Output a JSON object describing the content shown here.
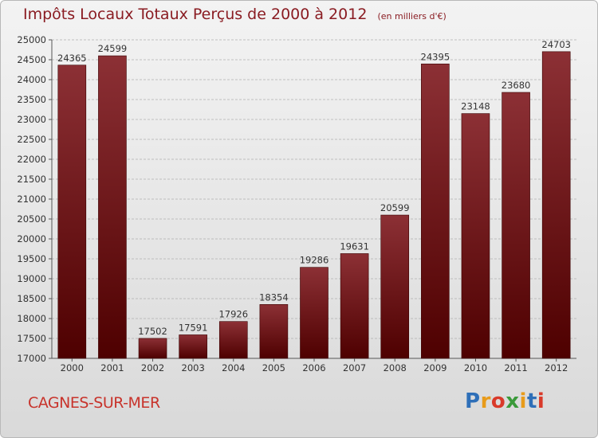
{
  "chart_data": {
    "type": "bar",
    "title": "Impôts Locaux Totaux Perçus de 2000 à 2012",
    "subtitle": "(en milliers d'€)",
    "categories": [
      "2000",
      "2001",
      "2002",
      "2003",
      "2004",
      "2005",
      "2006",
      "2007",
      "2008",
      "2009",
      "2010",
      "2011",
      "2012"
    ],
    "values": [
      24365,
      24599,
      17502,
      17591,
      17926,
      18354,
      19286,
      19631,
      20599,
      24395,
      23148,
      23680,
      24703
    ],
    "ylim": [
      17000,
      25000
    ],
    "yticks": [
      17000,
      17500,
      18000,
      18500,
      19000,
      19500,
      20000,
      20500,
      21000,
      21500,
      22000,
      22500,
      23000,
      23500,
      24000,
      24500,
      25000
    ],
    "grid": true,
    "colors": {
      "bar_top": "#8c3035",
      "bar_bottom": "#4e0000",
      "grid": "#b0b0b0"
    }
  },
  "location": "CAGNES-SUR-MER",
  "brand": {
    "letters": [
      "P",
      "r",
      "o",
      "x",
      "i",
      "t",
      "i"
    ],
    "colors": [
      "#2e6fb8",
      "#e89b1a",
      "#d93a2a",
      "#3a9a3a",
      "#e89b1a",
      "#2e6fb8",
      "#d93a2a"
    ]
  }
}
